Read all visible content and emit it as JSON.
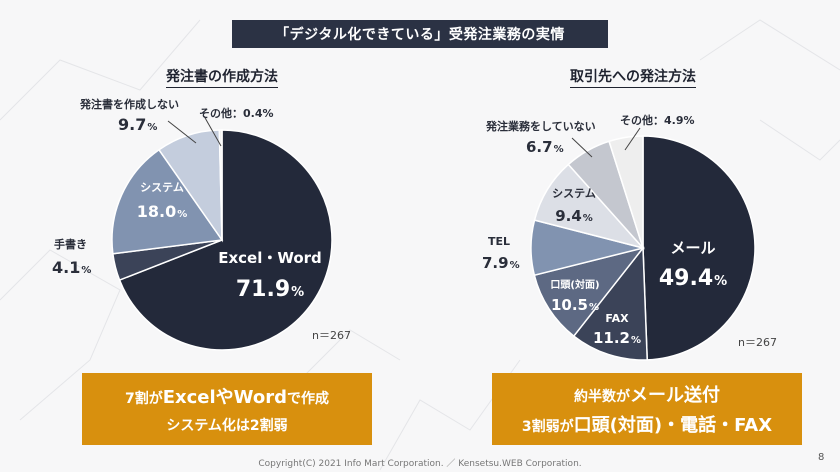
{
  "title": "「デジタル化できている」受発注業務の実情",
  "colors": {
    "navy": "#23293a",
    "dark": "#3b4358",
    "slate": "#5d6983",
    "steel": "#8193b0",
    "light": "#c4cddd",
    "pale": "#dcdfe6",
    "white": "#eeeeee",
    "accent": "#d8900e"
  },
  "chart_data": [
    {
      "type": "pie",
      "title": "発注書の作成方法",
      "n_label": "n＝267",
      "slices": [
        {
          "label": "Excel・Word",
          "value": 71.9,
          "display": "71.9",
          "color": "#23293a"
        },
        {
          "label": "手書き",
          "value": 4.1,
          "display": "4.1",
          "color": "#3b4358"
        },
        {
          "label": "システム",
          "value": 18.0,
          "display": "18.0",
          "color": "#8193b0"
        },
        {
          "label": "発注書を作成しない",
          "value": 9.7,
          "display": "9.7",
          "color": "#c4cddd"
        },
        {
          "label": "その他：0.4%",
          "value": 0.4,
          "display": "",
          "color": "#eeeeee"
        }
      ]
    },
    {
      "type": "pie",
      "title": "取引先への発注方法",
      "n_label": "n＝267",
      "slices": [
        {
          "label": "メール",
          "value": 49.4,
          "display": "49.4",
          "color": "#23293a"
        },
        {
          "label": "FAX",
          "value": 11.2,
          "display": "11.2",
          "color": "#3b4358"
        },
        {
          "label": "口頭(対面)",
          "value": 10.5,
          "display": "10.5",
          "color": "#5d6983"
        },
        {
          "label": "TEL",
          "value": 7.9,
          "display": "7.9",
          "color": "#8193b0"
        },
        {
          "label": "システム",
          "value": 9.4,
          "display": "9.4",
          "color": "#dcdfe6"
        },
        {
          "label": "発注業務をしていない",
          "value": 6.7,
          "display": "6.7",
          "color": "#c4c7cf"
        },
        {
          "label": "その他：4.9%",
          "value": 4.9,
          "display": "",
          "color": "#eeeeee"
        }
      ]
    }
  ],
  "callouts": {
    "left": {
      "line1_a": "7割が",
      "line1_b": "ExcelやWord",
      "line1_c": "で作成",
      "line2": "システム化は2割弱"
    },
    "right": {
      "line1_a": "約半数が",
      "line1_b": "メール送付",
      "line2_a": "3割弱が",
      "line2_b": "口頭(対面)・電話・FAX"
    }
  },
  "footer": "Copyright(C) 2021 Info Mart Corporation. ／ Kensetsu.WEB Corporation.",
  "page_number": "8",
  "pct": "%"
}
